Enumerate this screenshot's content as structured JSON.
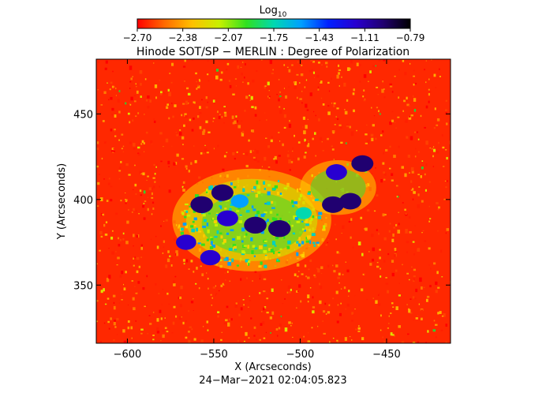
{
  "chart_data": {
    "type": "heatmap",
    "title": "Hinode SOT/SP − MERLIN : Degree of Polarization",
    "xlabel": "X (Arcseconds)",
    "ylabel": "Y (Arcseconds)",
    "xlim": [
      -618,
      -413
    ],
    "ylim": [
      316,
      482
    ],
    "xticks": [
      -600,
      -550,
      -500,
      -450
    ],
    "xtick_labels": [
      "−600",
      "−550",
      "−500",
      "−450"
    ],
    "yticks": [
      350,
      400,
      450
    ],
    "ytick_labels": [
      "350",
      "400",
      "450"
    ],
    "colorbar": {
      "title_main": "Log",
      "title_sub": "10",
      "range": [
        -2.7,
        -0.79
      ],
      "tick_labels": [
        "−2.70",
        "−2.38",
        "−2.07",
        "−1.75",
        "−1.43",
        "−1.11",
        "−0.79"
      ],
      "colors": [
        "#ff0000",
        "#ff6a00",
        "#ffc000",
        "#c8f000",
        "#30e020",
        "#00d8b0",
        "#00a0ff",
        "#0020ff",
        "#2800d0",
        "#200070",
        "#000000"
      ]
    },
    "regions": [
      {
        "x": -512,
        "y": 383,
        "level": -0.95
      },
      {
        "x": -526,
        "y": 385,
        "level": -0.95
      },
      {
        "x": -557,
        "y": 397,
        "level": -0.95
      },
      {
        "x": -545,
        "y": 404,
        "level": -1.0
      },
      {
        "x": -542,
        "y": 389,
        "level": -1.1
      },
      {
        "x": -566,
        "y": 375,
        "level": -1.2
      },
      {
        "x": -552,
        "y": 366,
        "level": -1.2
      },
      {
        "x": -481,
        "y": 397,
        "level": -1.0
      },
      {
        "x": -471,
        "y": 399,
        "level": -1.0
      },
      {
        "x": -479,
        "y": 416,
        "level": -1.1
      },
      {
        "x": -464,
        "y": 421,
        "level": -1.0
      },
      {
        "x": -535,
        "y": 399,
        "level": -1.5
      },
      {
        "x": -498,
        "y": 392,
        "level": -1.7
      }
    ],
    "background_level": -2.45,
    "grid": false
  },
  "footer": {
    "timestamp": "24−Mar−2021 02:04:05.823"
  }
}
